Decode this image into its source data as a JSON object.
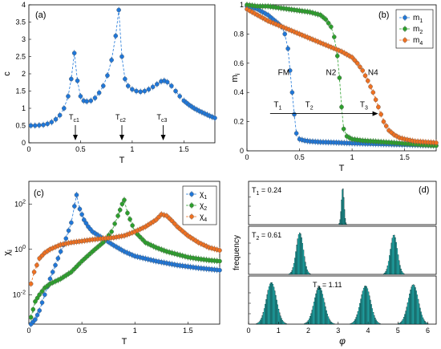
{
  "colors": {
    "blue": "#1f77d9",
    "green": "#2ca02c",
    "orange": "#f07020",
    "hist": "#20c8c8"
  },
  "chart_data": [
    {
      "panel": "(a)",
      "type": "line",
      "xlabel": "T",
      "ylabel": "c",
      "xlim": [
        0,
        1.8
      ],
      "ylim": [
        0,
        4
      ],
      "xticks": [
        "0",
        "0.5",
        "1",
        "1.5"
      ],
      "yticks": [
        "0",
        "0.5",
        "1",
        "1.5",
        "2",
        "2.5",
        "3",
        "3.5",
        "4"
      ],
      "series": [
        {
          "name": "",
          "color": "blue",
          "x": [
            0.02,
            0.06,
            0.1,
            0.14,
            0.18,
            0.22,
            0.26,
            0.3,
            0.34,
            0.38,
            0.41,
            0.44,
            0.47,
            0.5,
            0.53,
            0.56,
            0.6,
            0.64,
            0.68,
            0.72,
            0.76,
            0.8,
            0.84,
            0.87,
            0.9,
            0.93,
            0.96,
            1.0,
            1.04,
            1.08,
            1.12,
            1.16,
            1.2,
            1.24,
            1.28,
            1.31,
            1.34,
            1.38,
            1.42,
            1.46,
            1.5,
            1.55,
            1.6,
            1.65,
            1.7,
            1.75,
            1.8
          ],
          "y": [
            0.5,
            0.5,
            0.51,
            0.52,
            0.55,
            0.6,
            0.68,
            0.8,
            1.0,
            1.35,
            1.85,
            2.6,
            1.8,
            1.35,
            1.22,
            1.2,
            1.22,
            1.3,
            1.45,
            1.65,
            1.95,
            2.4,
            3.1,
            3.85,
            2.5,
            1.85,
            1.65,
            1.55,
            1.5,
            1.48,
            1.5,
            1.55,
            1.62,
            1.7,
            1.78,
            1.8,
            1.76,
            1.65,
            1.5,
            1.35,
            1.22,
            1.1,
            1.0,
            0.92,
            0.85,
            0.78,
            0.72
          ]
        }
      ],
      "annotations": [
        {
          "label": "T",
          "sub": "c1",
          "x": 0.45
        },
        {
          "label": "T",
          "sub": "c2",
          "x": 0.9
        },
        {
          "label": "T",
          "sub": "c3",
          "x": 1.3
        }
      ]
    },
    {
      "panel": "(b)",
      "type": "line",
      "xlabel": "T",
      "ylabel": "m",
      "ylabel_sub": "i",
      "xlim": [
        0,
        1.8
      ],
      "ylim": [
        0,
        1
      ],
      "xticks": [
        "0",
        "0.5",
        "1",
        "1.5"
      ],
      "yticks": [
        "0",
        "0.2",
        "0.4",
        "0.6",
        "0.8",
        "1"
      ],
      "legend_position": "top-right",
      "series": [
        {
          "name": "m",
          "sub": "1",
          "color": "blue",
          "x": [
            0.0,
            0.05,
            0.1,
            0.15,
            0.2,
            0.25,
            0.3,
            0.33,
            0.36,
            0.39,
            0.41,
            0.43,
            0.45,
            0.47,
            0.5,
            0.55,
            0.6,
            0.7,
            0.8,
            0.9,
            1.0,
            1.1,
            1.2,
            1.3,
            1.4,
            1.5,
            1.6,
            1.7,
            1.8
          ],
          "y": [
            0.99,
            0.98,
            0.97,
            0.95,
            0.93,
            0.9,
            0.87,
            0.85,
            0.8,
            0.7,
            0.55,
            0.4,
            0.25,
            0.12,
            0.08,
            0.07,
            0.065,
            0.06,
            0.058,
            0.055,
            0.052,
            0.05,
            0.048,
            0.046,
            0.044,
            0.042,
            0.04,
            0.038,
            0.036
          ]
        },
        {
          "name": "m",
          "sub": "2",
          "color": "green",
          "x": [
            0.0,
            0.1,
            0.2,
            0.3,
            0.4,
            0.5,
            0.6,
            0.7,
            0.75,
            0.8,
            0.83,
            0.86,
            0.88,
            0.9,
            0.92,
            0.95,
            1.0,
            1.1,
            1.2,
            1.3,
            1.4,
            1.5,
            1.6,
            1.7,
            1.8
          ],
          "y": [
            1.0,
            0.99,
            0.99,
            0.98,
            0.97,
            0.96,
            0.95,
            0.93,
            0.9,
            0.85,
            0.78,
            0.65,
            0.5,
            0.3,
            0.15,
            0.1,
            0.08,
            0.07,
            0.065,
            0.06,
            0.055,
            0.05,
            0.045,
            0.04,
            0.035
          ]
        },
        {
          "name": "m",
          "sub": "4",
          "color": "orange",
          "x": [
            0.0,
            0.1,
            0.2,
            0.3,
            0.4,
            0.5,
            0.6,
            0.7,
            0.8,
            0.9,
            1.0,
            1.05,
            1.1,
            1.15,
            1.2,
            1.25,
            1.3,
            1.35,
            1.4,
            1.45,
            1.5,
            1.6,
            1.7,
            1.8
          ],
          "y": [
            0.97,
            0.93,
            0.89,
            0.86,
            0.83,
            0.8,
            0.77,
            0.74,
            0.71,
            0.68,
            0.64,
            0.6,
            0.55,
            0.48,
            0.4,
            0.3,
            0.2,
            0.14,
            0.11,
            0.09,
            0.08,
            0.065,
            0.06,
            0.055
          ]
        }
      ],
      "region_labels": [
        "FM",
        "N2",
        "N4"
      ],
      "arrow_labels": [
        {
          "label": "T",
          "sub": "1",
          "x": 0.3
        },
        {
          "label": "T",
          "sub": "2",
          "x": 0.6
        },
        {
          "label": "T",
          "sub": "3",
          "x": 1.12
        }
      ]
    },
    {
      "panel": "(c)",
      "type": "line",
      "xlabel": "T",
      "ylabel": "χ",
      "ylabel_sub": "i",
      "xlim": [
        0,
        1.8
      ],
      "ylim_log10": [
        -3.3,
        3
      ],
      "xticks": [
        "0",
        "0.5",
        "1",
        "1.5"
      ],
      "yticks": [
        {
          "base": "10",
          "exp": "-2",
          "log": -2
        },
        {
          "base": "10",
          "exp": "0",
          "log": 0
        },
        {
          "base": "10",
          "exp": "2",
          "log": 2
        }
      ],
      "legend_position": "top-right",
      "series": [
        {
          "name": "χ",
          "sub": "1",
          "color": "blue",
          "x": [
            0.02,
            0.06,
            0.1,
            0.15,
            0.2,
            0.25,
            0.3,
            0.35,
            0.4,
            0.43,
            0.45,
            0.48,
            0.52,
            0.56,
            0.6,
            0.7,
            0.8,
            0.9,
            1.0,
            1.2,
            1.4,
            1.6,
            1.8
          ],
          "y": [
            0.0005,
            0.0008,
            0.002,
            0.01,
            0.05,
            0.2,
            0.8,
            3,
            15,
            80,
            250,
            60,
            20,
            10,
            6,
            3,
            1.5,
            0.8,
            0.5,
            0.3,
            0.2,
            0.15,
            0.12
          ]
        },
        {
          "name": "χ",
          "sub": "2",
          "color": "green",
          "x": [
            0.02,
            0.06,
            0.1,
            0.15,
            0.2,
            0.3,
            0.4,
            0.5,
            0.6,
            0.7,
            0.78,
            0.84,
            0.88,
            0.9,
            0.93,
            1.0,
            1.1,
            1.2,
            1.3,
            1.4,
            1.5,
            1.6,
            1.7,
            1.8
          ],
          "y": [
            0.001,
            0.005,
            0.01,
            0.02,
            0.03,
            0.05,
            0.1,
            0.3,
            0.8,
            2,
            6,
            30,
            100,
            150,
            40,
            6,
            2,
            1.2,
            0.8,
            0.6,
            0.45,
            0.38,
            0.33,
            0.3
          ]
        },
        {
          "name": "χ",
          "sub": "4",
          "color": "orange",
          "x": [
            0.02,
            0.05,
            0.1,
            0.15,
            0.2,
            0.3,
            0.4,
            0.5,
            0.6,
            0.7,
            0.8,
            0.9,
            1.0,
            1.1,
            1.2,
            1.25,
            1.3,
            1.35,
            1.4,
            1.5,
            1.6,
            1.7,
            1.8
          ],
          "y": [
            0.03,
            0.1,
            0.4,
            0.7,
            1,
            1.6,
            2,
            2.3,
            2.7,
            3,
            3.3,
            4,
            6,
            10,
            20,
            35,
            30,
            18,
            10,
            4,
            2,
            1.2,
            0.9
          ]
        }
      ]
    },
    {
      "panel": "(d)",
      "type": "bar",
      "xlabel": "φ",
      "ylabel": "frequency",
      "xlim": [
        0,
        6.28
      ],
      "xticks": [
        "0",
        "1",
        "2",
        "3",
        "4",
        "5",
        "6"
      ],
      "subplots": [
        {
          "label": "T",
          "sub": "1",
          "value": "= 0.24",
          "peaks": [
            {
              "center": 3.14,
              "height": 1.0
            }
          ]
        },
        {
          "label": "T",
          "sub": "2",
          "value": "= 0.61",
          "peaks": [
            {
              "center": 1.7,
              "height": 1.0
            },
            {
              "center": 4.85,
              "height": 0.95
            }
          ]
        },
        {
          "label": "T",
          "sub": "3",
          "value": "= 1.11",
          "peaks": [
            {
              "center": 0.75,
              "height": 1.0
            },
            {
              "center": 2.35,
              "height": 0.9
            },
            {
              "center": 3.9,
              "height": 0.92
            },
            {
              "center": 5.5,
              "height": 0.95
            }
          ]
        }
      ]
    }
  ]
}
